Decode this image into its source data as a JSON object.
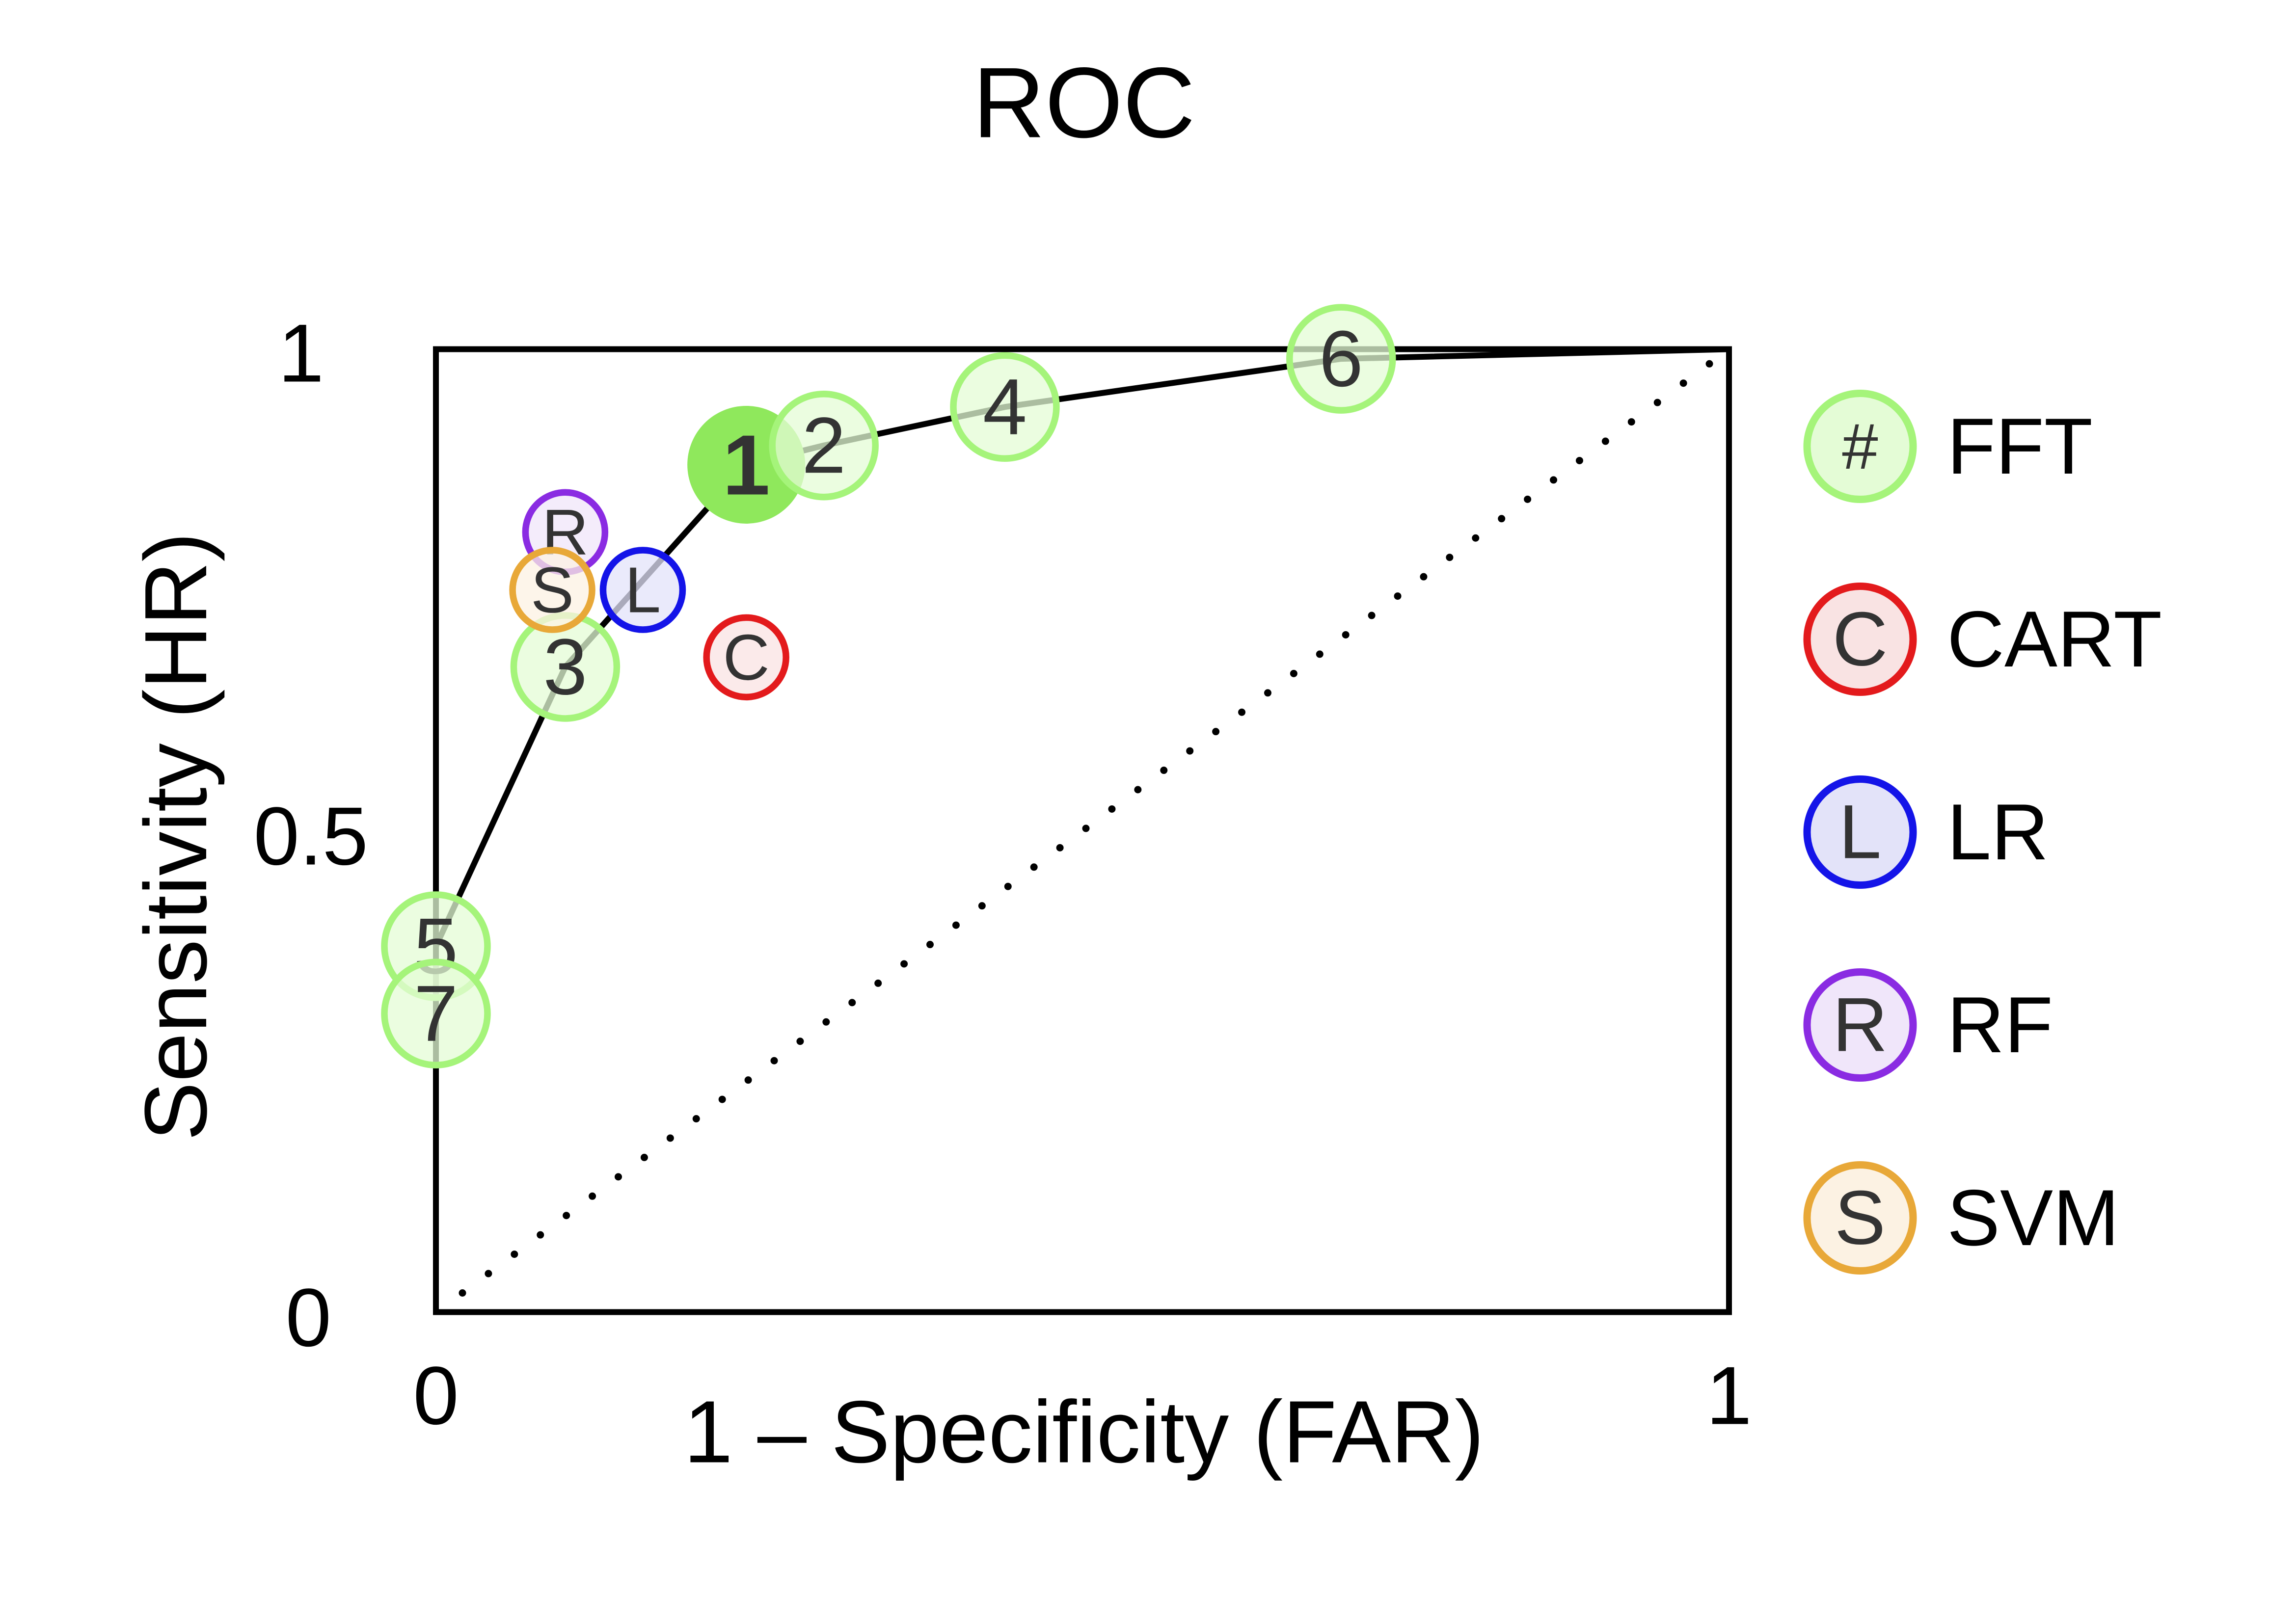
{
  "chart_data": {
    "type": "scatter",
    "title": "ROC",
    "xlabel": "1 – Specificity (FAR)",
    "ylabel": "Sensitivity (HR)",
    "xlim": [
      0,
      1
    ],
    "ylim": [
      0,
      1
    ],
    "x_ticks": [
      "0",
      "1"
    ],
    "y_ticks": [
      "0",
      "0.5",
      "1"
    ],
    "grid": false,
    "legend_position": "right",
    "diagonal_reference": "dotted",
    "series": [
      {
        "name": "FFT",
        "symbol": "#",
        "color": "#A5F47A",
        "fill": "#E4FCD6",
        "highlight_fill": "#8FE85C",
        "points": [
          {
            "label": "1",
            "x": 0.24,
            "y": 0.88,
            "highlight": true
          },
          {
            "label": "2",
            "x": 0.3,
            "y": 0.9
          },
          {
            "label": "3",
            "x": 0.1,
            "y": 0.67
          },
          {
            "label": "4",
            "x": 0.44,
            "y": 0.94
          },
          {
            "label": "5",
            "x": 0.0,
            "y": 0.38
          },
          {
            "label": "6",
            "x": 0.7,
            "y": 0.99
          },
          {
            "label": "7",
            "x": 0.0,
            "y": 0.31
          }
        ],
        "roc_curve": [
          [
            0,
            0.31
          ],
          [
            0,
            0.38
          ],
          [
            0.1,
            0.67
          ],
          [
            0.24,
            0.88
          ],
          [
            0.3,
            0.9
          ],
          [
            0.44,
            0.94
          ],
          [
            0.7,
            0.99
          ],
          [
            1,
            1
          ]
        ]
      },
      {
        "name": "CART",
        "symbol": "C",
        "color": "#E31A1C",
        "fill": "#F9E3E3",
        "points": [
          {
            "label": "C",
            "x": 0.24,
            "y": 0.68
          }
        ]
      },
      {
        "name": "LR",
        "symbol": "L",
        "color": "#1414E8",
        "fill": "#E3E3F9",
        "points": [
          {
            "label": "L",
            "x": 0.16,
            "y": 0.75
          }
        ]
      },
      {
        "name": "RF",
        "symbol": "R",
        "color": "#8A2BE2",
        "fill": "#F0E6FA",
        "points": [
          {
            "label": "R",
            "x": 0.1,
            "y": 0.81
          }
        ]
      },
      {
        "name": "SVM",
        "symbol": "S",
        "color": "#E8A838",
        "fill": "#FCF2E3",
        "points": [
          {
            "label": "S",
            "x": 0.09,
            "y": 0.75
          }
        ]
      }
    ]
  }
}
